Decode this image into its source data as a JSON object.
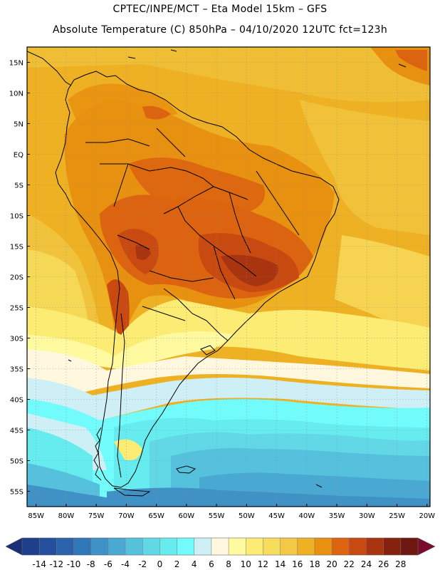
{
  "title_line1": "CPTEC/INPE/MCT –  Eta Model 15km – GFS",
  "title_line2": "Absolute Temperature (C) 850hPa – 04/10/2020 12UTC fct=123h",
  "lat_labels": [
    "15N",
    "10N",
    "5N",
    "EQ",
    "5S",
    "10S",
    "15S",
    "20S",
    "25S",
    "30S",
    "35S",
    "40S",
    "45S",
    "50S",
    "55S"
  ],
  "lon_labels": [
    "85W",
    "80W",
    "75W",
    "70W",
    "65W",
    "60W",
    "55W",
    "50W",
    "45W",
    "40W",
    "35W",
    "30W",
    "25W",
    "20W"
  ],
  "colorbar": {
    "labels": [
      "-14",
      "-12",
      "-10",
      "-8",
      "-6",
      "-4",
      "-2",
      "0",
      "2",
      "4",
      "6",
      "8",
      "10",
      "12",
      "14",
      "16",
      "18",
      "20",
      "22",
      "24",
      "26",
      "28"
    ],
    "colors": [
      "#1d3f8c",
      "#234f9c",
      "#2a62ac",
      "#3077b8",
      "#3f91c6",
      "#4aa9d2",
      "#55c1dd",
      "#62d7e6",
      "#66ebee",
      "#72fbfb",
      "#cfeff6",
      "#fff8df",
      "#fffaa0",
      "#fdec74",
      "#f7dd5e",
      "#f2c845",
      "#edb123",
      "#e8900f",
      "#dc6410",
      "#c84a11",
      "#a83510",
      "#85220e",
      "#6e1710"
    ],
    "left_arrow_color": "#1a2f78",
    "right_arrow_color": "#7a0c2e"
  },
  "colors": {
    "frame": "#000000",
    "grid": "#8a8a8a",
    "coast": "#000000",
    "base_warm": "#edb123"
  }
}
